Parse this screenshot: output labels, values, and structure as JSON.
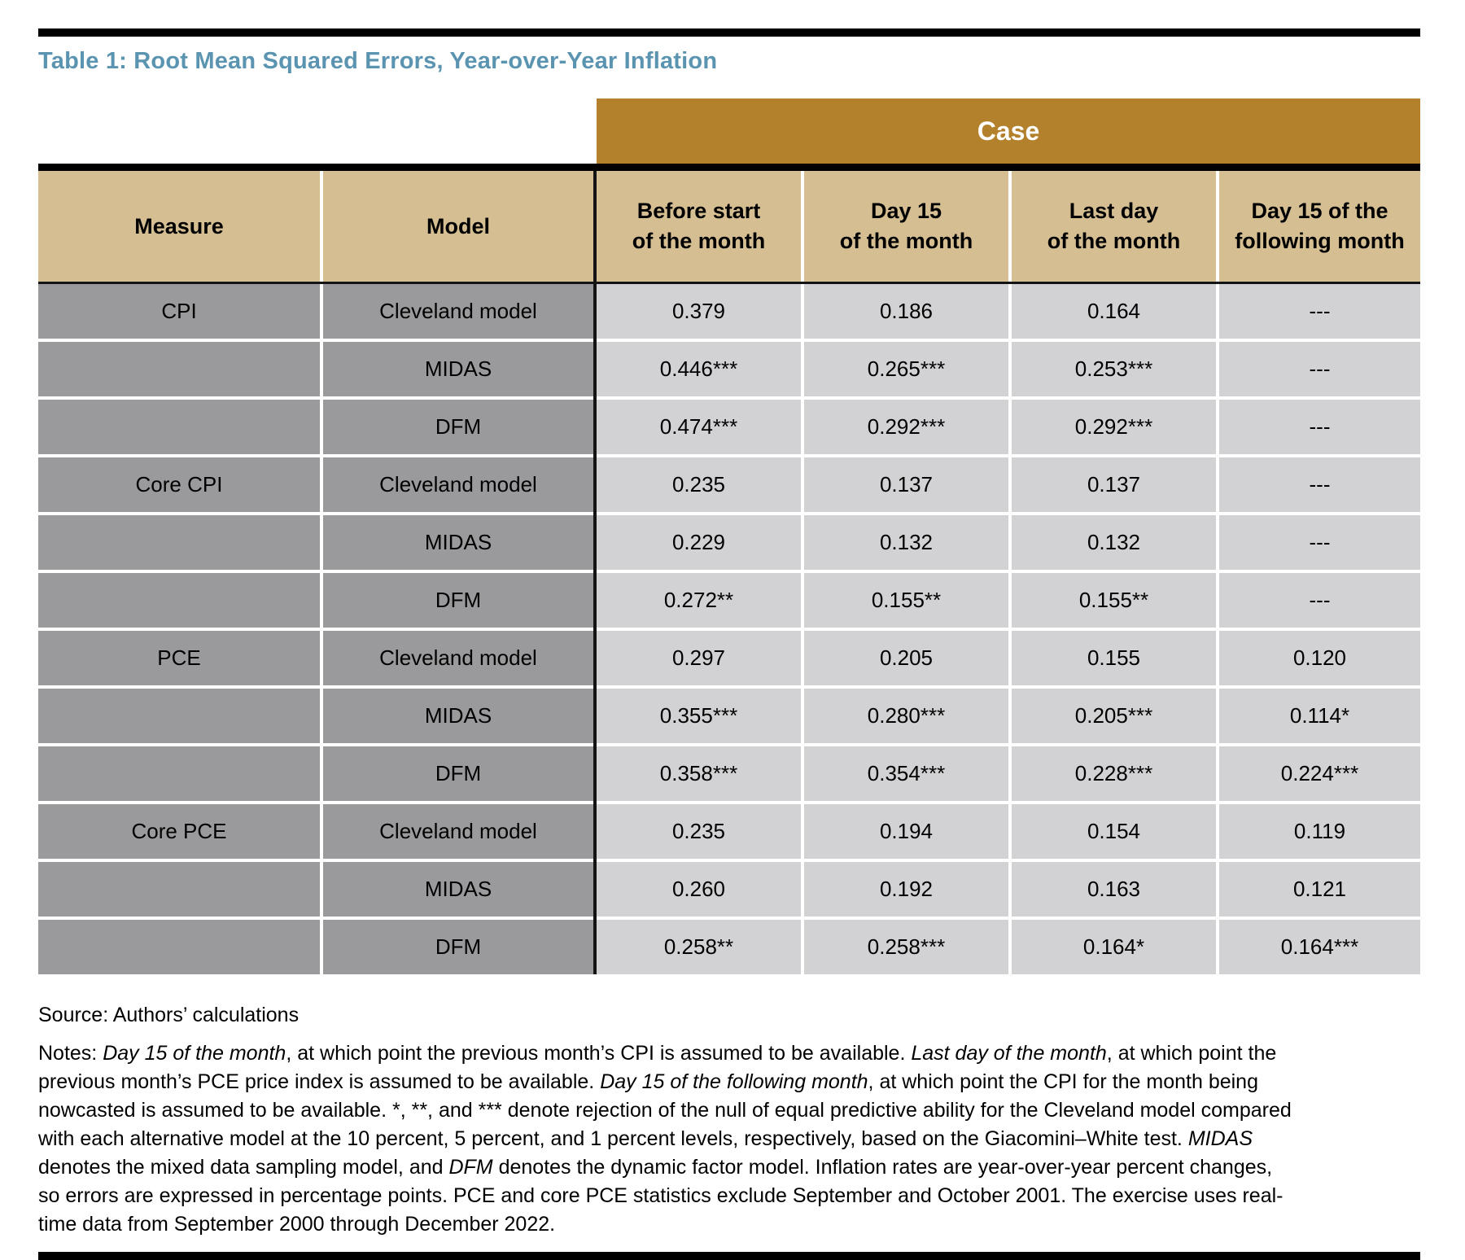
{
  "page": {
    "title": "Table 1: Root Mean Squared Errors, Year-over-Year Inflation",
    "colors": {
      "title_blue": "#5B94B1",
      "gold": "#B3812C",
      "tan": "#D5BE92",
      "gray": "#9A9A9C",
      "light_gray": "#D2D2D4",
      "rule_black": "#000000"
    }
  },
  "table": {
    "case_header": "Case",
    "columns": [
      {
        "label": "Measure"
      },
      {
        "label": "Model"
      },
      {
        "label": "Before start\nof the month"
      },
      {
        "label": "Day 15\nof the month"
      },
      {
        "label": "Last day\nof the month"
      },
      {
        "label": "Day 15 of the\nfollowing month"
      }
    ],
    "rows": [
      {
        "measure": "CPI",
        "model": "Cleveland model",
        "values": [
          "0.379",
          "0.186",
          "0.164",
          "---"
        ]
      },
      {
        "measure": "",
        "model": "MIDAS",
        "values": [
          "0.446***",
          "0.265***",
          "0.253***",
          "---"
        ]
      },
      {
        "measure": "",
        "model": "DFM",
        "values": [
          "0.474***",
          "0.292***",
          "0.292***",
          "---"
        ]
      },
      {
        "measure": "Core CPI",
        "model": "Cleveland model",
        "values": [
          "0.235",
          "0.137",
          "0.137",
          "---"
        ]
      },
      {
        "measure": "",
        "model": "MIDAS",
        "values": [
          "0.229",
          "0.132",
          "0.132",
          "---"
        ]
      },
      {
        "measure": "",
        "model": "DFM",
        "values": [
          "0.272**",
          "0.155**",
          "0.155**",
          "---"
        ]
      },
      {
        "measure": "PCE",
        "model": "Cleveland model",
        "values": [
          "0.297",
          "0.205",
          "0.155",
          "0.120"
        ]
      },
      {
        "measure": "",
        "model": "MIDAS",
        "values": [
          "0.355***",
          "0.280***",
          "0.205***",
          "0.114*"
        ]
      },
      {
        "measure": "",
        "model": "DFM",
        "values": [
          "0.358***",
          "0.354***",
          "0.228***",
          "0.224***"
        ]
      },
      {
        "measure": "Core PCE",
        "model": "Cleveland model",
        "values": [
          "0.235",
          "0.194",
          "0.154",
          "0.119"
        ]
      },
      {
        "measure": "",
        "model": "MIDAS",
        "values": [
          "0.260",
          "0.192",
          "0.163",
          "0.121"
        ]
      },
      {
        "measure": "",
        "model": "DFM",
        "values": [
          "0.258**",
          "0.258***",
          "0.164*",
          "0.164***"
        ]
      }
    ]
  },
  "source": "Source: Authors’ calculations",
  "notes": {
    "segments": [
      {
        "text": "Notes: ",
        "italic": false
      },
      {
        "text": "Day 15 of the month",
        "italic": true
      },
      {
        "text": ", at which point the previous month’s CPI is assumed to be available. ",
        "italic": false
      },
      {
        "text": "Last day of the month",
        "italic": true
      },
      {
        "text": ", at which point the previous month’s PCE price index is assumed to be available. ",
        "italic": false
      },
      {
        "text": "Day 15 of the following month",
        "italic": true
      },
      {
        "text": ", at which point the CPI for the month being nowcasted is assumed to be available. *, **, and *** denote rejection of the null of equal predictive ability for the Cleveland model compared with each alternative model at the 10 percent, 5 percent, and 1 percent levels, respectively, based on the Giacomini–White test. ",
        "italic": false
      },
      {
        "text": "MIDAS",
        "italic": true
      },
      {
        "text": " denotes the mixed data sampling model, and ",
        "italic": false
      },
      {
        "text": "DFM",
        "italic": true
      },
      {
        "text": " denotes the dynamic factor model. Inflation rates are year-over-year percent changes, so errors are expressed in percentage points. PCE and core PCE statistics exclude September and October 2001. The exercise uses real-time data from September 2000 through December 2022.",
        "italic": false
      }
    ]
  }
}
